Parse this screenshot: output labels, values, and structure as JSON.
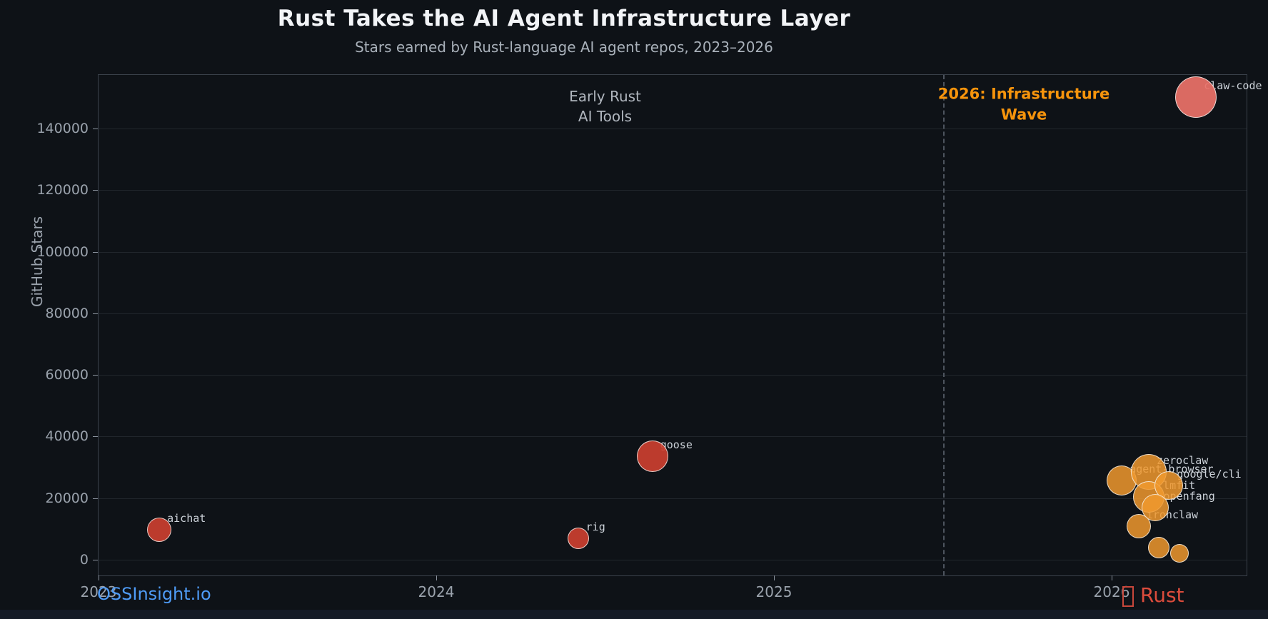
{
  "page": {
    "background": "#0e1217",
    "title": "Rust Takes the AI Agent Infrastructure Layer",
    "subtitle": "Stars earned by Rust-language AI agent repos, 2023–2026"
  },
  "footer": {
    "brand": "OSSInsight.io",
    "rust_label": "Rust"
  },
  "colors": {
    "background": "#0e1217",
    "title_text": "#f2f4f7",
    "subtitle_text": "#a9b1ba",
    "tick_text": "#9aa2ac",
    "grid": "rgba(173,186,199,0.12)",
    "red_bubble": "#cf4030",
    "salmon_bubble": "#ea7168",
    "orange_bubble": "#f0992e",
    "annotation_gray": "#b0b6be",
    "annotation_orange": "#f6940c",
    "brand_blue": "#4f9cf7",
    "rust_red": "#dc4c3c"
  },
  "chart_data": {
    "type": "scatter",
    "title": "Rust Takes the AI Agent Infrastructure Layer",
    "subtitle": "Stars earned by Rust-language AI agent repos, 2023–2026",
    "xlabel": "",
    "ylabel": "GitHub Stars",
    "xlim": [
      2023,
      2026.4
    ],
    "ylim": [
      0,
      157000
    ],
    "xticks": [
      2023,
      2024,
      2025,
      2026
    ],
    "yticks": [
      0,
      20000,
      40000,
      60000,
      80000,
      100000,
      120000,
      140000
    ],
    "grid": "horizontal",
    "legend": "none",
    "vline": {
      "x": 2025.5,
      "style": "dashed"
    },
    "annotations": [
      {
        "text": "Early Rust\nAI Tools",
        "x": 2024.5,
        "y": 147100,
        "color": "#b0b6be",
        "bold": false
      },
      {
        "text": "2026: Infrastructure\nWave",
        "x": 2025.74,
        "y": 147600,
        "color": "#f6940c",
        "bold": true
      }
    ],
    "points": [
      {
        "label": "aichat",
        "x": 2023.18,
        "y": 9800,
        "r": 17,
        "fill": "rgba(207,64,48,0.9)"
      },
      {
        "label": "rig",
        "x": 2024.42,
        "y": 6900,
        "r": 15,
        "fill": "rgba(207,64,48,0.9)"
      },
      {
        "label": "goose",
        "x": 2024.64,
        "y": 33600,
        "r": 22,
        "fill": "rgba(207,64,48,0.9)"
      },
      {
        "label": "claw-code",
        "x": 2026.25,
        "y": 150100,
        "r": 29,
        "fill": "rgba(234,113,104,0.93)"
      },
      {
        "label": "agent-browser",
        "x": 2026.03,
        "y": 25700,
        "r": 21,
        "fill": "rgba(240,153,46,0.85)"
      },
      {
        "label": "zeroclaw",
        "x": 2026.11,
        "y": 28500,
        "r": 25,
        "fill": "rgba(240,153,46,0.85)"
      },
      {
        "label": "llmfit",
        "x": 2026.11,
        "y": 20400,
        "r": 22,
        "fill": "rgba(240,153,46,0.85)"
      },
      {
        "label": "google/cli",
        "x": 2026.17,
        "y": 24000,
        "r": 20,
        "fill": "rgba(240,153,46,0.85)"
      },
      {
        "label": "openfang",
        "x": 2026.13,
        "y": 16900,
        "r": 19,
        "fill": "rgba(240,153,46,0.85)"
      },
      {
        "label": "ironclaw",
        "x": 2026.08,
        "y": 10900,
        "r": 17,
        "fill": "rgba(240,153,46,0.85)"
      },
      {
        "label": "",
        "x": 2026.14,
        "y": 3900,
        "r": 15,
        "fill": "rgba(240,153,46,0.85)"
      },
      {
        "label": "",
        "x": 2026.2,
        "y": 2100,
        "r": 13,
        "fill": "rgba(240,153,46,0.85)"
      }
    ]
  }
}
